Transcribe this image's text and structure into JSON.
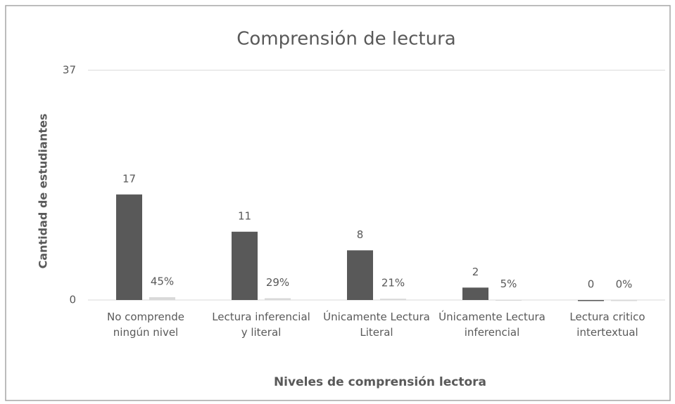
{
  "chart_data": {
    "type": "bar",
    "title": "Comprensión de lectura",
    "x_label": "Niveles de comprensión lectora",
    "y_label": "Cantidad de estudiantes",
    "categories": [
      "No comprende ningún nivel",
      "Lectura inferencial y literal",
      "Únicamente Lectura Literal",
      "Únicamente Lectura inferencial",
      "Lectura critico intertextual"
    ],
    "series": [
      {
        "color": "#595959",
        "values": [
          17,
          11,
          8,
          2,
          0
        ]
      },
      {
        "color": "#d9d9d9",
        "values": [
          0.45,
          0.29,
          0.21,
          0.05,
          0
        ],
        "value_labels": [
          "45%",
          "29%",
          "21%",
          "5%",
          "0%"
        ]
      }
    ],
    "ylim": [
      0,
      37
    ],
    "yticks": [
      0,
      37
    ],
    "grid": true
  }
}
